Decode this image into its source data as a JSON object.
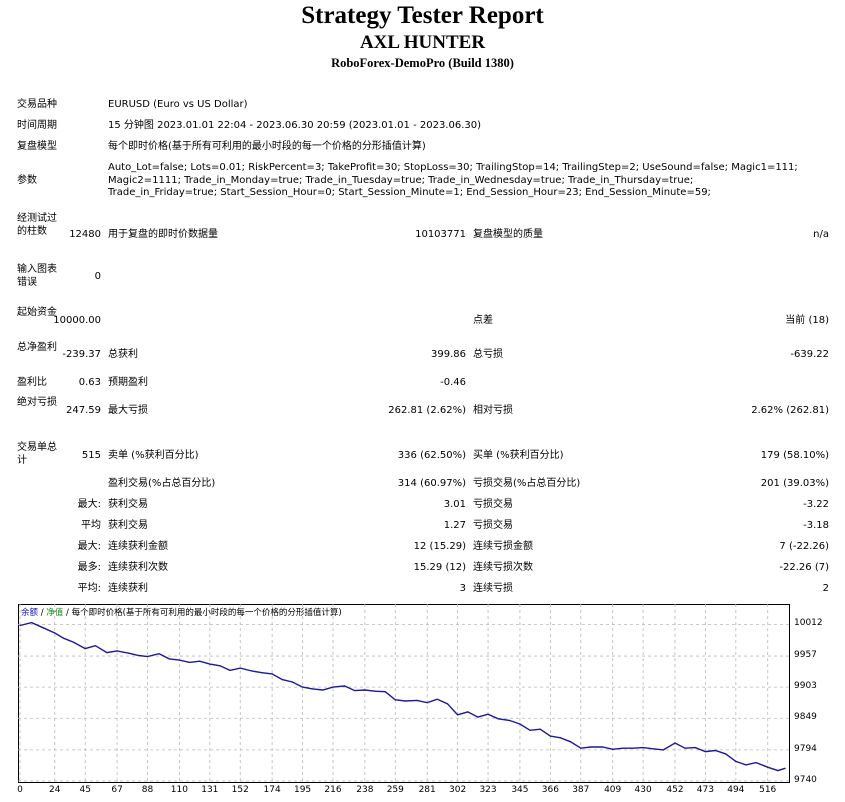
{
  "header": {
    "title": "Strategy Tester Report",
    "expert": "AXL HUNTER",
    "server": "RoboForex-DemoPro (Build 1380)"
  },
  "info": {
    "symbol_label": "交易品种",
    "symbol_value": "EURUSD (Euro vs US Dollar)",
    "period_label": "时间周期",
    "period_value": "15 分钟图 2023.01.01 22:04 - 2023.06.30 20:59 (2023.01.01 - 2023.06.30)",
    "model_label": "复盘模型",
    "model_value": "每个即时价格(基于所有可利用的最小时段的每一个价格的分形插值计算)",
    "params_label": "参数",
    "params_value": "Auto_Lot=false; Lots=0.01; RiskPercent=3; TakeProfit=30; StopLoss=30; TrailingStop=14; TrailingStep=2; UseSound=false; Magic1=111; Magic2=1111; Trade_in_Monday=true; Trade_in_Tuesday=true; Trade_in_Wednesday=true; Trade_in_Thursday=true; Trade_in_Friday=true; Start_Session_Hour=0; Start_Session_Minute=1; End_Session_Hour=23; End_Session_Minute=59;"
  },
  "stats": {
    "bars_label": "经测试过的柱数",
    "bars_value": "12480",
    "ticks_label": "用于复盘的即时价数据量",
    "ticks_value": "10103771",
    "quality_label": "复盘模型的质量",
    "quality_value": "n/a",
    "mismatch_label": "输入图表错误",
    "mismatch_value": "0",
    "deposit_label": "起始资金",
    "deposit_value": "10000.00",
    "spread_label": "点差",
    "spread_value": "当前 (18)",
    "netprofit_label": "总净盈利",
    "netprofit_value": "-239.37",
    "grossprofit_label": "总获利",
    "grossprofit_value": "399.86",
    "grossloss_label": "总亏损",
    "grossloss_value": "-639.22",
    "pf_label": "盈利比",
    "pf_value": "0.63",
    "payoff_label": "预期盈利",
    "payoff_value": "-0.46",
    "absdd_label": "绝对亏损",
    "absdd_value": "247.59",
    "maxdd_label": "最大亏损",
    "maxdd_value": "262.81 (2.62%)",
    "reldd_label": "相对亏损",
    "reldd_value": "2.62% (262.81)",
    "trades_label": "交易单总计",
    "trades_value": "515",
    "short_label": "卖单 (%获利百分比)",
    "short_value": "336 (62.50%)",
    "long_label": "买单 (%获利百分比)",
    "long_value": "179 (58.10%)",
    "profit_trades_label": "盈利交易(%占总百分比)",
    "profit_trades_value": "314 (60.97%)",
    "loss_trades_label": "亏损交易(%占总百分比)",
    "loss_trades_value": "201 (39.03%)",
    "largest_prefix": "最大:",
    "largest_profit_label": "获利交易",
    "largest_profit_value": "3.01",
    "largest_loss_label": "亏损交易",
    "largest_loss_value": "-3.22",
    "average_prefix": "平均",
    "avg_profit_label": "获利交易",
    "avg_profit_value": "1.27",
    "avg_loss_label": "亏损交易",
    "avg_loss_value": "-3.18",
    "max_prefix": "最大:",
    "max_consec_wins_label": "连续获利金额",
    "max_consec_wins_value": "12 (15.29)",
    "max_consec_losses_label": "连续亏损金额",
    "max_consec_losses_value": "7 (-22.26)",
    "maximal_prefix": "最多:",
    "maximal_consec_profit_label": "连续获利次数",
    "maximal_consec_profit_value": "15.29 (12)",
    "maximal_consec_loss_label": "连续亏损次数",
    "maximal_consec_loss_value": "-22.26 (7)",
    "avg_consec_prefix": "平均:",
    "avg_consec_wins_label": "连续获利",
    "avg_consec_wins_value": "3",
    "avg_consec_losses_label": "连续亏损",
    "avg_consec_losses_value": "2"
  },
  "legend": {
    "balance": "余额",
    "sep": " / ",
    "equity": "净值",
    "rest": " / 每个即时价格(基于所有可利用的最小时段的每一个价格的分形插值计算)"
  },
  "chart_data": {
    "type": "line",
    "title": "",
    "xlabel": "",
    "ylabel": "",
    "xlim": [
      0,
      530
    ],
    "ylim": [
      9740,
      10030
    ],
    "x_ticks": [
      0,
      24,
      45,
      67,
      88,
      110,
      131,
      152,
      174,
      195,
      216,
      238,
      259,
      281,
      302,
      323,
      345,
      366,
      387,
      409,
      430,
      452,
      473,
      494,
      516
    ],
    "y_ticks": [
      9740,
      9794,
      9849,
      9903,
      9957,
      10012
    ],
    "series": [
      {
        "color": "#1a1a9a",
        "x": [
          0,
          8,
          16,
          24,
          30,
          37,
          45,
          52,
          60,
          67,
          75,
          82,
          88,
          96,
          103,
          110,
          117,
          124,
          131,
          138,
          145,
          152,
          160,
          167,
          174,
          181,
          188,
          195,
          202,
          209,
          216,
          224,
          231,
          238,
          245,
          252,
          259,
          266,
          274,
          281,
          288,
          295,
          302,
          309,
          316,
          323,
          330,
          338,
          345,
          352,
          359,
          366,
          373,
          380,
          387,
          394,
          402,
          409,
          416,
          423,
          430,
          437,
          444,
          452,
          459,
          466,
          473,
          480,
          487,
          494,
          501,
          508,
          516,
          523,
          528
        ],
        "y": [
          10010,
          10015,
          10006,
          9997,
          9988,
          9981,
          9970,
          9975,
          9963,
          9966,
          9962,
          9958,
          9956,
          9961,
          9952,
          9950,
          9946,
          9948,
          9943,
          9940,
          9932,
          9936,
          9931,
          9928,
          9926,
          9916,
          9912,
          9903,
          9900,
          9898,
          9903,
          9905,
          9897,
          9898,
          9896,
          9895,
          9881,
          9879,
          9880,
          9876,
          9882,
          9874,
          9855,
          9860,
          9851,
          9856,
          9848,
          9845,
          9839,
          9828,
          9830,
          9818,
          9815,
          9808,
          9797,
          9799,
          9799,
          9795,
          9797,
          9797,
          9798,
          9796,
          9794,
          9806,
          9797,
          9798,
          9791,
          9793,
          9787,
          9774,
          9768,
          9772,
          9764,
          9758,
          9762
        ]
      }
    ]
  }
}
